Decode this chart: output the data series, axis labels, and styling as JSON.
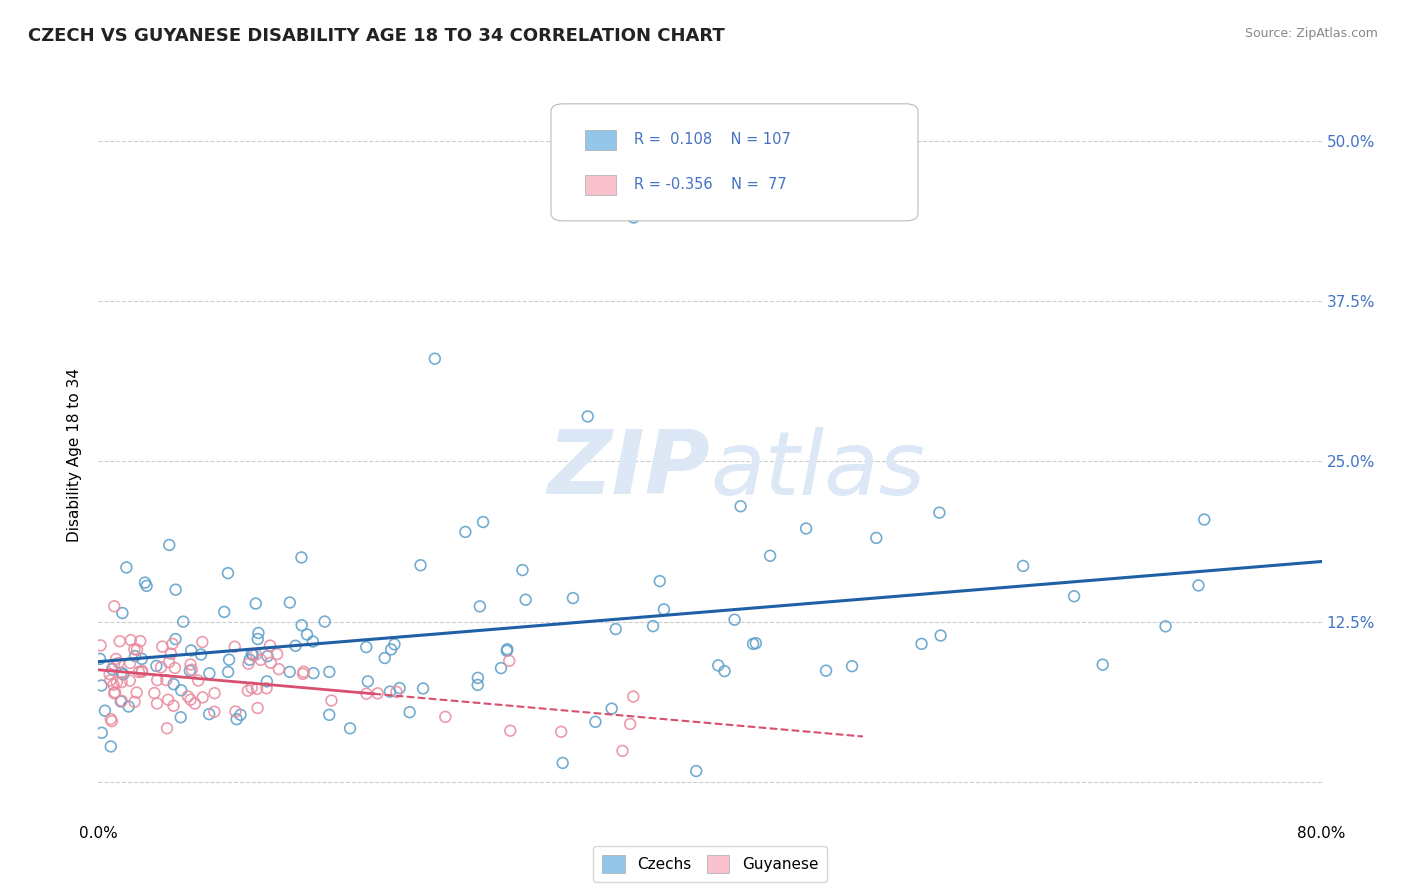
{
  "title": "CZECH VS GUYANESE DISABILITY AGE 18 TO 34 CORRELATION CHART",
  "source_text": "Source: ZipAtlas.com",
  "ylabel": "Disability Age 18 to 34",
  "xlim": [
    0.0,
    0.8
  ],
  "ylim": [
    -0.03,
    0.54
  ],
  "x_ticks": [
    0.0,
    0.8
  ],
  "x_tick_labels": [
    "0.0%",
    "80.0%"
  ],
  "y_ticks": [
    0.0,
    0.125,
    0.25,
    0.375,
    0.5
  ],
  "y_tick_labels": [
    "",
    "12.5%",
    "25.0%",
    "37.5%",
    "50.0%"
  ],
  "czech_R": 0.108,
  "czech_N": 107,
  "guyanese_R": -0.356,
  "guyanese_N": 77,
  "czech_color": "#93c6e8",
  "czech_edge_color": "#5b9ec9",
  "guyanese_color": "#f9c0ce",
  "guyanese_edge_color": "#e88a9e",
  "czech_line_color": "#1f5fa6",
  "guyanese_line_color": "#d94f70",
  "background_color": "#ffffff",
  "grid_color": "#cccccc",
  "watermark_color": "#dce8f5",
  "legend_labels": [
    "Czechs",
    "Guyanese"
  ],
  "title_fontsize": 13,
  "axis_label_fontsize": 11,
  "tick_fontsize": 11,
  "right_tick_color": "#4472c4",
  "value_color": "#4472c4",
  "legend_text_color": "#333333"
}
